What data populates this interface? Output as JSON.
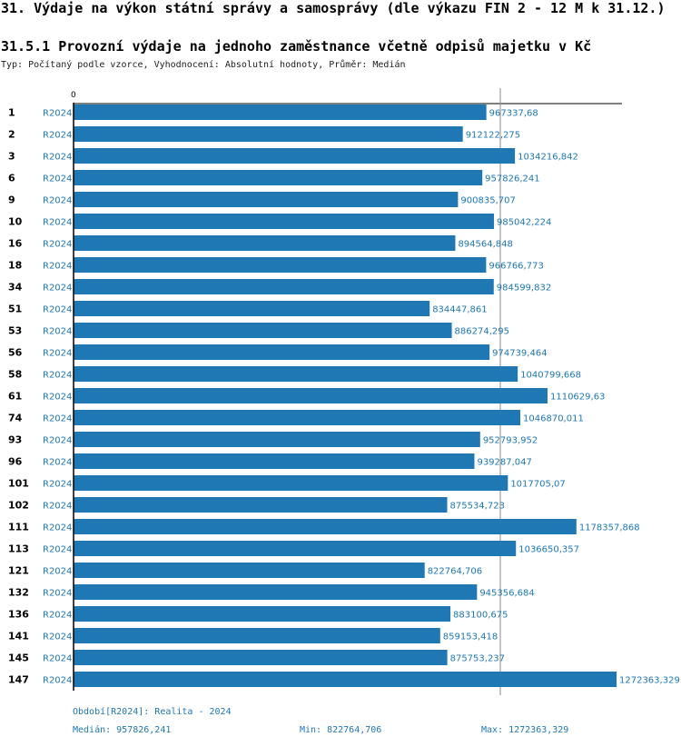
{
  "header": {
    "title": "31. Výdaje na výkon státní správy a samosprávy (dle výkazu FIN 2 - 12 M k 31.12.)",
    "subtitle": "31.5.1 Provozní výdaje na jednoho zaměstnance včetně odpisů majetku v Kč",
    "typeline": "Typ: Počítaný podle vzorce, Vyhodnocení: Absolutní hodnoty, Průměr: Medián"
  },
  "chart_data": {
    "type": "bar",
    "orientation": "horizontal",
    "axis_zero_label": "0",
    "xlim": [
      0,
      1350000
    ],
    "reference_line": 1000000,
    "period": "R2024",
    "categories": [
      "1",
      "2",
      "3",
      "6",
      "9",
      "10",
      "16",
      "18",
      "34",
      "51",
      "53",
      "56",
      "58",
      "61",
      "74",
      "93",
      "96",
      "101",
      "102",
      "111",
      "113",
      "121",
      "132",
      "136",
      "141",
      "145",
      "147"
    ],
    "values": [
      967337.68,
      912122.275,
      1034216.842,
      957826.241,
      900835.707,
      985042.224,
      894564.848,
      966766.773,
      984599.832,
      834447.861,
      886274.295,
      974739.464,
      1040799.668,
      1110629.63,
      1046870.011,
      952793.952,
      939287.047,
      1017705.07,
      875534.723,
      1178357.868,
      1036650.357,
      822764.706,
      945356.684,
      883100.675,
      859153.418,
      875753.237,
      1272363.329
    ],
    "value_labels": [
      "967337,68",
      "912122,275",
      "1034216,842",
      "957826,241",
      "900835,707",
      "985042,224",
      "894564,848",
      "966766,773",
      "984599,832",
      "834447,861",
      "886274,295",
      "974739,464",
      "1040799,668",
      "1110629,63",
      "1046870,011",
      "952793,952",
      "939287,047",
      "1017705,07",
      "875534,723",
      "1178357,868",
      "1036650,357",
      "822764,706",
      "945356,684",
      "883100,675",
      "859153,418",
      "875753,237",
      "1272363,329"
    ]
  },
  "footer": {
    "period_note": "Období[R2024]: Realita - 2024",
    "median": "Medián: 957826,241",
    "min": "Min: 822764,706",
    "max": "Max: 1272363,329"
  },
  "colors": {
    "bar": "#1f77b4",
    "reference_line": "#888888"
  }
}
